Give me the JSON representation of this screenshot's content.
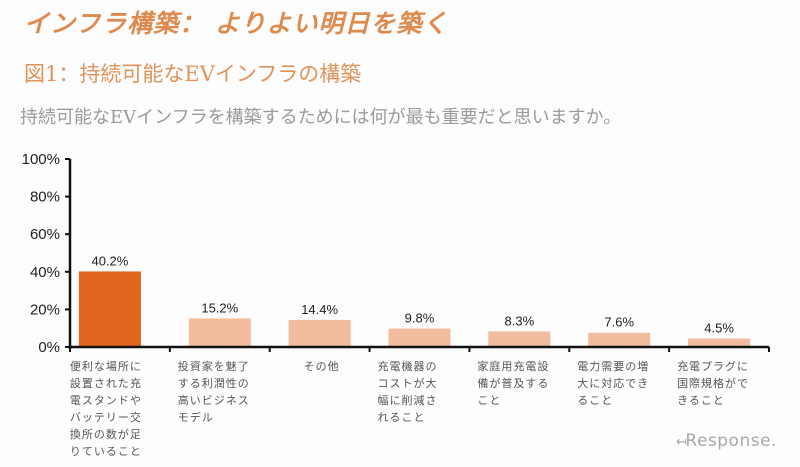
{
  "header": {
    "title": "インフラ構築： よりよい明日を築く",
    "subtitle": "図1：持続可能なEVインフラの構築",
    "question": "持続可能なEVインフラを構築するためには何が最も重要だと思いますか。"
  },
  "branding": {
    "logo_text": "Response.",
    "logo_icon": "return-arrow-icon"
  },
  "colors": {
    "title": "#dd8a4c",
    "highlight_bar": "#e3661f",
    "other_bar": "#f2bc9e",
    "axis": "#111111"
  },
  "chart_data": {
    "type": "bar",
    "title": "持続可能なEVインフラを構築するためには何が最も重要だと思いますか。",
    "xlabel": "",
    "ylabel": "",
    "ylim": [
      0,
      100
    ],
    "yticks": [
      "0%",
      "20%",
      "40%",
      "60%",
      "80%",
      "100%"
    ],
    "ytick_values": [
      0,
      20,
      40,
      60,
      80,
      100
    ],
    "grid": false,
    "legend": "none",
    "categories": [
      "便利な場所に設置された充電スタンドやバッテリー交換所の数が足りていること",
      "投資家を魅了する利潤性の高いビジネスモデル",
      "その他",
      "充電機器のコストが大幅に削減されること",
      "家庭用充電設備が普及すること",
      "電力需要の増大に対応できること",
      "充電プラグに国際規格ができること"
    ],
    "category_lines": [
      [
        "便利な場所に",
        "設置された充",
        "電スタンドや",
        "バッテリー交",
        "換所の数が足",
        "りていること"
      ],
      [
        "投資家を魅了",
        "する利潤性の",
        "高いビジネス",
        "モデル"
      ],
      [
        "その他"
      ],
      [
        "充電機器の",
        "コストが大",
        "幅に削減さ",
        "れること"
      ],
      [
        "家庭用充電設",
        "備が普及する",
        "こと"
      ],
      [
        "電力需要の増",
        "大に対応でき",
        "ること"
      ],
      [
        "充電プラグに",
        "国際規格がで",
        "きること"
      ]
    ],
    "values": [
      40.2,
      15.2,
      14.4,
      9.8,
      8.3,
      7.6,
      4.5
    ],
    "data_labels": [
      "40.2%",
      "15.2%",
      "14.4%",
      "9.8%",
      "8.3%",
      "7.6%",
      "4.5%"
    ],
    "highlight_index": 0
  }
}
